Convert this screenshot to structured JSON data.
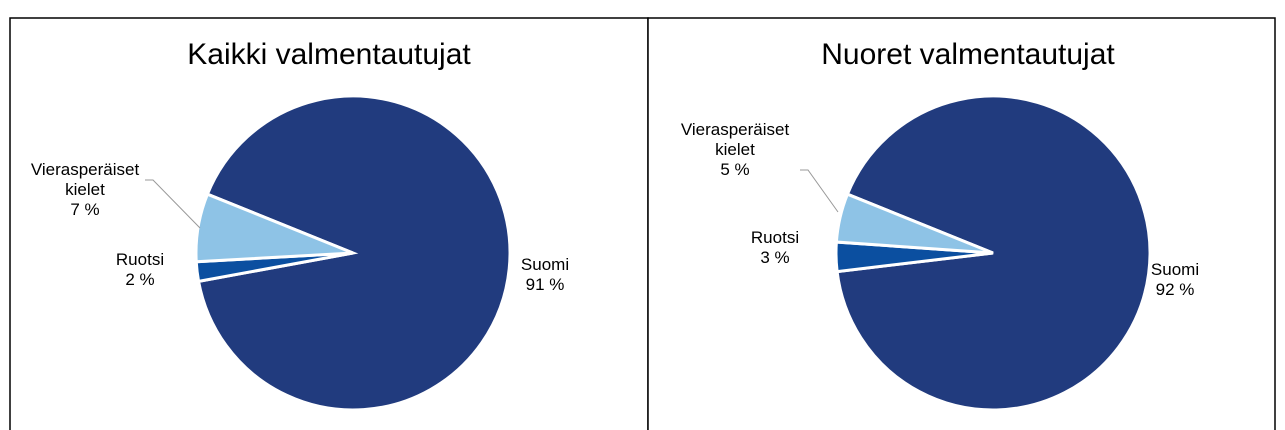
{
  "chart_data": [
    {
      "type": "pie",
      "title": "Kaikki valmentautujat",
      "categories": [
        "Suomi",
        "Ruotsi",
        "Vierasperäiset kielet"
      ],
      "values": [
        91,
        2,
        7
      ],
      "value_labels": [
        "91 %",
        "2 %",
        "7 %"
      ],
      "colors": [
        "#213b7e",
        "#0b4fa0",
        "#8ec3e6"
      ]
    },
    {
      "type": "pie",
      "title": "Nuoret valmentautujat",
      "categories": [
        "Suomi",
        "Ruotsi",
        "Vierasperäiset kielet"
      ],
      "values": [
        92,
        3,
        5
      ],
      "value_labels": [
        "92 %",
        "3 %",
        "5 %"
      ],
      "colors": [
        "#213b7e",
        "#0b4fa0",
        "#8ec3e6"
      ]
    }
  ]
}
